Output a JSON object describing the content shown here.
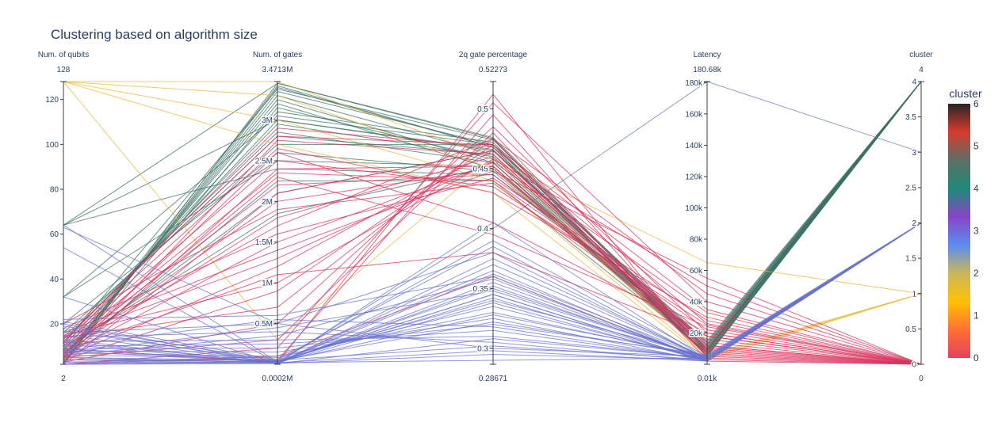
{
  "chart_data": {
    "type": "parallel_coordinates",
    "title": "Clustering based on algorithm size",
    "axes": [
      {
        "key": "qubits",
        "label": "Num. of qubits",
        "range_top": "128",
        "range_bottom": "2",
        "min": 2,
        "max": 128,
        "ticks": [
          {
            "v": 20,
            "t": "20"
          },
          {
            "v": 40,
            "t": "40"
          },
          {
            "v": 60,
            "t": "60"
          },
          {
            "v": 80,
            "t": "80"
          },
          {
            "v": 100,
            "t": "100"
          },
          {
            "v": 120,
            "t": "120"
          }
        ]
      },
      {
        "key": "gates",
        "label": "Num. of gates",
        "range_top": "3.4713M",
        "range_bottom": "0.0002M",
        "min": 0.0002,
        "max": 3.4713,
        "ticks": [
          {
            "v": 0.5,
            "t": "0.5M"
          },
          {
            "v": 1,
            "t": "1M"
          },
          {
            "v": 1.5,
            "t": "1.5M"
          },
          {
            "v": 2,
            "t": "2M"
          },
          {
            "v": 2.5,
            "t": "2.5M"
          },
          {
            "v": 3,
            "t": "3M"
          }
        ]
      },
      {
        "key": "twoq",
        "label": "2q gate percentage",
        "range_top": "0.52273",
        "range_bottom": "0.28671",
        "min": 0.28671,
        "max": 0.52273,
        "ticks": [
          {
            "v": 0.3,
            "t": "0.3"
          },
          {
            "v": 0.35,
            "t": "0.35"
          },
          {
            "v": 0.4,
            "t": "0.4"
          },
          {
            "v": 0.45,
            "t": "0.45"
          },
          {
            "v": 0.5,
            "t": "0.5"
          }
        ]
      },
      {
        "key": "latency",
        "label": "Latency",
        "range_top": "180.68k",
        "range_bottom": "0.01k",
        "min": 0.01,
        "max": 180.68,
        "ticks": [
          {
            "v": 20,
            "t": "20k"
          },
          {
            "v": 40,
            "t": "40k"
          },
          {
            "v": 60,
            "t": "60k"
          },
          {
            "v": 80,
            "t": "80k"
          },
          {
            "v": 100,
            "t": "100k"
          },
          {
            "v": 120,
            "t": "120k"
          },
          {
            "v": 140,
            "t": "140k"
          },
          {
            "v": 160,
            "t": "160k"
          },
          {
            "v": 180,
            "t": "180k"
          }
        ]
      },
      {
        "key": "cluster",
        "label": "cluster",
        "range_top": "4",
        "range_bottom": "0",
        "min": 0,
        "max": 4,
        "ticks": [
          {
            "v": 0,
            "t": "0"
          },
          {
            "v": 0.5,
            "t": "0.5"
          },
          {
            "v": 1,
            "t": "1"
          },
          {
            "v": 1.5,
            "t": "1.5"
          },
          {
            "v": 2,
            "t": "2"
          },
          {
            "v": 2.5,
            "t": "2.5"
          },
          {
            "v": 3,
            "t": "3"
          },
          {
            "v": 3.5,
            "t": "3.5"
          },
          {
            "v": 4,
            "t": "4"
          }
        ]
      }
    ],
    "colorbar": {
      "title": "cluster",
      "min": 0,
      "max": 6,
      "ticks": [
        "0",
        "1",
        "2",
        "3",
        "4",
        "5",
        "6"
      ],
      "stops": [
        "#e6415c",
        "#ff7034",
        "#ffc107",
        "#c9b75a",
        "#5d8cf0",
        "#8844c6",
        "#1e8a78",
        "#5d6f66",
        "#d63b2c",
        "#262626"
      ]
    },
    "line_colors": {
      "0": "#d9335d",
      "1": "#e8b93c",
      "2": "#6b73cf",
      "3": "#6a7ea3",
      "4": "#3e7066"
    },
    "lines": [
      {
        "c": 4,
        "v": [
          2,
          3.45,
          0.475,
          8,
          4
        ]
      },
      {
        "c": 4,
        "v": [
          2,
          3.4,
          0.468,
          6,
          4
        ]
      },
      {
        "c": 4,
        "v": [
          3,
          3.35,
          0.47,
          5,
          4
        ]
      },
      {
        "c": 4,
        "v": [
          4,
          3.3,
          0.462,
          10,
          4
        ]
      },
      {
        "c": 4,
        "v": [
          5,
          3.25,
          0.455,
          7,
          4
        ]
      },
      {
        "c": 4,
        "v": [
          6,
          3.2,
          0.45,
          9,
          4
        ]
      },
      {
        "c": 4,
        "v": [
          8,
          3.1,
          0.472,
          6,
          4
        ]
      },
      {
        "c": 4,
        "v": [
          10,
          3.0,
          0.466,
          12,
          4
        ]
      },
      {
        "c": 4,
        "v": [
          12,
          2.95,
          0.46,
          8,
          4
        ]
      },
      {
        "c": 4,
        "v": [
          14,
          2.85,
          0.455,
          10,
          4
        ]
      },
      {
        "c": 4,
        "v": [
          16,
          2.7,
          0.47,
          14,
          4
        ]
      },
      {
        "c": 4,
        "v": [
          20,
          2.6,
          0.448,
          9,
          4
        ]
      },
      {
        "c": 4,
        "v": [
          32,
          2.5,
          0.452,
          11,
          4
        ]
      },
      {
        "c": 4,
        "v": [
          64,
          2.4,
          0.445,
          15,
          4
        ]
      },
      {
        "c": 4,
        "v": [
          64,
          3.45,
          0.476,
          10,
          4
        ]
      },
      {
        "c": 4,
        "v": [
          32,
          3.05,
          0.47,
          13,
          4
        ]
      },
      {
        "c": 4,
        "v": [
          5,
          2.25,
          0.44,
          8,
          4
        ]
      },
      {
        "c": 4,
        "v": [
          7,
          2.1,
          0.465,
          12,
          4
        ]
      },
      {
        "c": 4,
        "v": [
          9,
          1.85,
          0.452,
          6,
          4
        ]
      },
      {
        "c": 4,
        "v": [
          11,
          3.38,
          0.474,
          9,
          4
        ]
      },
      {
        "c": 4,
        "v": [
          3,
          3.15,
          0.458,
          7,
          4
        ]
      },
      {
        "c": 4,
        "v": [
          13,
          2.8,
          0.462,
          10,
          4
        ]
      },
      {
        "c": 4,
        "v": [
          64,
          3.0,
          0.465,
          12,
          4
        ]
      },
      {
        "c": 4,
        "v": [
          4,
          3.42,
          0.468,
          5,
          4
        ]
      },
      {
        "c": 1,
        "v": [
          128,
          3.47,
          0.46,
          5,
          1
        ]
      },
      {
        "c": 1,
        "v": [
          128,
          3.3,
          0.45,
          6,
          1
        ]
      },
      {
        "c": 1,
        "v": [
          128,
          3.0,
          0.44,
          4,
          1
        ]
      },
      {
        "c": 1,
        "v": [
          128,
          2.7,
          0.43,
          3,
          1
        ]
      },
      {
        "c": 1,
        "v": [
          128,
          0.3,
          0.458,
          65,
          1
        ]
      },
      {
        "c": 3,
        "v": [
          2,
          0.02,
          0.4,
          180.68,
          3
        ]
      },
      {
        "c": 0,
        "v": [
          2,
          0.2,
          0.505,
          40,
          0
        ]
      },
      {
        "c": 0,
        "v": [
          3,
          0.5,
          0.485,
          20,
          0
        ]
      },
      {
        "c": 0,
        "v": [
          4,
          0.9,
          0.47,
          12,
          0
        ]
      },
      {
        "c": 0,
        "v": [
          5,
          1.2,
          0.465,
          8,
          0
        ]
      },
      {
        "c": 0,
        "v": [
          6,
          1.5,
          0.455,
          6,
          0
        ]
      },
      {
        "c": 0,
        "v": [
          7,
          1.8,
          0.46,
          10,
          0
        ]
      },
      {
        "c": 0,
        "v": [
          8,
          2.0,
          0.45,
          14,
          0
        ]
      },
      {
        "c": 0,
        "v": [
          9,
          2.2,
          0.445,
          18,
          0
        ]
      },
      {
        "c": 0,
        "v": [
          10,
          2.35,
          0.44,
          22,
          0
        ]
      },
      {
        "c": 0,
        "v": [
          11,
          2.5,
          0.435,
          25,
          0
        ]
      },
      {
        "c": 0,
        "v": [
          12,
          2.65,
          0.43,
          30,
          0
        ]
      },
      {
        "c": 0,
        "v": [
          13,
          2.8,
          0.47,
          35,
          0
        ]
      },
      {
        "c": 0,
        "v": [
          14,
          0.7,
          0.475,
          45,
          0
        ]
      },
      {
        "c": 0,
        "v": [
          15,
          1.0,
          0.458,
          50,
          0
        ]
      },
      {
        "c": 0,
        "v": [
          16,
          1.4,
          0.448,
          55,
          0
        ]
      },
      {
        "c": 0,
        "v": [
          18,
          1.6,
          0.442,
          28,
          0
        ]
      },
      {
        "c": 0,
        "v": [
          20,
          1.9,
          0.438,
          16,
          0
        ]
      },
      {
        "c": 0,
        "v": [
          2,
          2.1,
          0.465,
          12,
          0
        ]
      },
      {
        "c": 0,
        "v": [
          3,
          2.4,
          0.452,
          9,
          0
        ]
      },
      {
        "c": 0,
        "v": [
          4,
          0.05,
          0.495,
          7,
          0
        ]
      },
      {
        "c": 0,
        "v": [
          5,
          0.3,
          0.48,
          5,
          0
        ]
      },
      {
        "c": 0,
        "v": [
          6,
          2.6,
          0.405,
          20,
          0
        ]
      },
      {
        "c": 0,
        "v": [
          7,
          2.3,
          0.395,
          24,
          0
        ]
      },
      {
        "c": 0,
        "v": [
          8,
          1.1,
          0.38,
          18,
          0
        ]
      },
      {
        "c": 0,
        "v": [
          9,
          0.02,
          0.512,
          4,
          0
        ]
      },
      {
        "c": 0,
        "v": [
          10,
          1.7,
          0.475,
          3,
          0
        ]
      },
      {
        "c": 0,
        "v": [
          2,
          0.1,
          0.36,
          2,
          0
        ]
      },
      {
        "c": 0,
        "v": [
          3,
          2.75,
          0.462,
          11,
          0
        ]
      },
      {
        "c": 0,
        "v": [
          12,
          2.9,
          0.468,
          26,
          0
        ]
      },
      {
        "c": 0,
        "v": [
          14,
          1.3,
          0.456,
          33,
          0
        ]
      },
      {
        "c": 2,
        "v": [
          2,
          0.01,
          0.355,
          3,
          2
        ]
      },
      {
        "c": 2,
        "v": [
          3,
          0.02,
          0.35,
          4,
          2
        ]
      },
      {
        "c": 2,
        "v": [
          4,
          0.03,
          0.345,
          2,
          2
        ]
      },
      {
        "c": 2,
        "v": [
          5,
          0.05,
          0.34,
          5,
          2
        ]
      },
      {
        "c": 2,
        "v": [
          6,
          0.08,
          0.335,
          3,
          2
        ]
      },
      {
        "c": 2,
        "v": [
          7,
          0.1,
          0.33,
          4,
          2
        ]
      },
      {
        "c": 2,
        "v": [
          8,
          0.15,
          0.325,
          2,
          2
        ]
      },
      {
        "c": 2,
        "v": [
          9,
          0.2,
          0.32,
          6,
          2
        ]
      },
      {
        "c": 2,
        "v": [
          10,
          0.25,
          0.315,
          3,
          2
        ]
      },
      {
        "c": 2,
        "v": [
          12,
          0.3,
          0.31,
          4,
          2
        ]
      },
      {
        "c": 2,
        "v": [
          14,
          0.4,
          0.305,
          2,
          2
        ]
      },
      {
        "c": 2,
        "v": [
          16,
          0.5,
          0.3,
          5,
          2
        ]
      },
      {
        "c": 2,
        "v": [
          18,
          0.01,
          0.295,
          3,
          2
        ]
      },
      {
        "c": 2,
        "v": [
          20,
          0.02,
          0.29,
          4,
          2
        ]
      },
      {
        "c": 2,
        "v": [
          22,
          0.6,
          0.36,
          2,
          2
        ]
      },
      {
        "c": 2,
        "v": [
          32,
          0.01,
          0.352,
          3,
          2
        ]
      },
      {
        "c": 2,
        "v": [
          54,
          0.02,
          0.37,
          4,
          2
        ]
      },
      {
        "c": 2,
        "v": [
          64,
          0.03,
          0.345,
          2,
          2
        ]
      },
      {
        "c": 2,
        "v": [
          63,
          0.5,
          0.38,
          3,
          2
        ]
      },
      {
        "c": 2,
        "v": [
          2,
          0.04,
          0.39,
          5,
          2
        ]
      },
      {
        "c": 2,
        "v": [
          3,
          0.06,
          0.385,
          3,
          2
        ]
      },
      {
        "c": 2,
        "v": [
          4,
          0.01,
          0.375,
          4,
          2
        ]
      },
      {
        "c": 2,
        "v": [
          5,
          0.02,
          0.365,
          2,
          2
        ]
      },
      {
        "c": 2,
        "v": [
          6,
          0.35,
          0.358,
          3,
          2
        ]
      },
      {
        "c": 2,
        "v": [
          7,
          0.45,
          0.348,
          4,
          2
        ]
      },
      {
        "c": 2,
        "v": [
          8,
          0.02,
          0.338,
          2,
          2
        ]
      },
      {
        "c": 2,
        "v": [
          9,
          0.03,
          0.328,
          5,
          2
        ]
      },
      {
        "c": 2,
        "v": [
          10,
          0.55,
          0.318,
          3,
          2
        ]
      },
      {
        "c": 2,
        "v": [
          11,
          0.01,
          0.308,
          4,
          2
        ]
      },
      {
        "c": 2,
        "v": [
          12,
          0.02,
          0.298,
          2,
          2
        ]
      },
      {
        "c": 2,
        "v": [
          13,
          0.01,
          0.405,
          3,
          2
        ]
      },
      {
        "c": 2,
        "v": [
          15,
          0.02,
          0.362,
          4,
          2
        ]
      },
      {
        "c": 2,
        "v": [
          17,
          0.03,
          0.342,
          2,
          2
        ]
      },
      {
        "c": 2,
        "v": [
          19,
          0.04,
          0.322,
          5,
          2
        ]
      },
      {
        "c": 2,
        "v": [
          21,
          0.05,
          0.302,
          3,
          2
        ]
      }
    ]
  }
}
